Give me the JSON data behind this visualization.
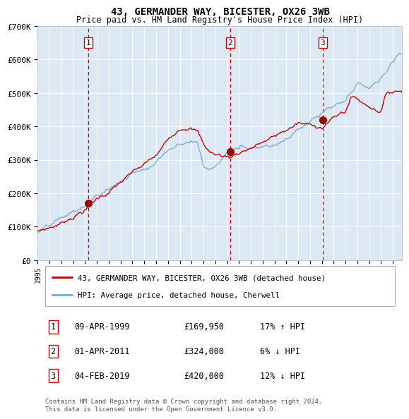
{
  "title": "43, GERMANDER WAY, BICESTER, OX26 3WB",
  "subtitle": "Price paid vs. HM Land Registry's House Price Index (HPI)",
  "fig_facecolor": "#ffffff",
  "plot_bg_color": "#dce9f5",
  "red_line_color": "#cc0000",
  "blue_line_color": "#7aafd4",
  "grid_color": "#ffffff",
  "dashed_line_color": "#cc0000",
  "ylim": [
    0,
    700000
  ],
  "yticks": [
    0,
    100000,
    200000,
    300000,
    400000,
    500000,
    600000,
    700000
  ],
  "ytick_labels": [
    "£0",
    "£100K",
    "£200K",
    "£300K",
    "£400K",
    "£500K",
    "£600K",
    "£700K"
  ],
  "sale_dates": [
    "09-APR-1999",
    "01-APR-2011",
    "04-FEB-2019"
  ],
  "sale_prices": [
    169950,
    324000,
    420000
  ],
  "sale_hpi_pct": [
    "17% ↑ HPI",
    "6% ↓ HPI",
    "12% ↓ HPI"
  ],
  "sale_years": [
    1999.27,
    2011.25,
    2019.09
  ],
  "legend_label_red": "43, GERMANDER WAY, BICESTER, OX26 3WB (detached house)",
  "legend_label_blue": "HPI: Average price, detached house, Cherwell",
  "footer": "Contains HM Land Registry data © Crown copyright and database right 2024.\nThis data is licensed under the Open Government Licence v3.0.",
  "xstart": 1995.0,
  "xend": 2025.8
}
